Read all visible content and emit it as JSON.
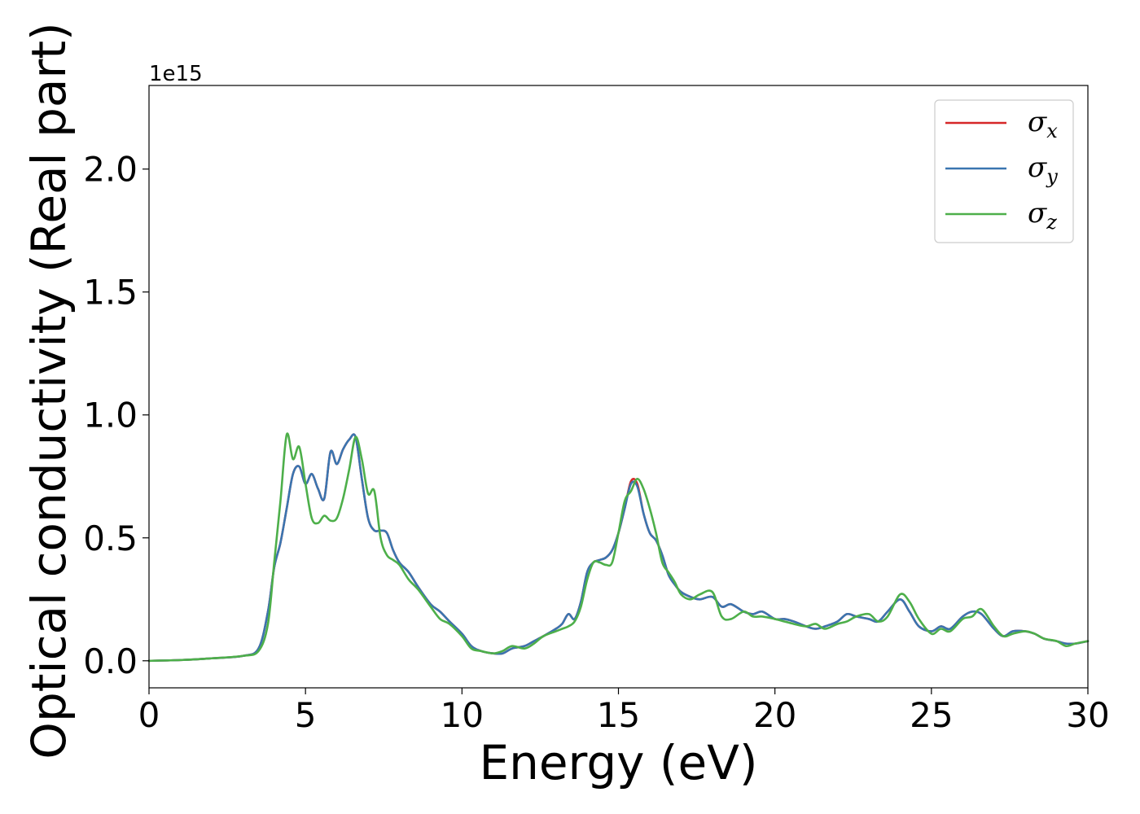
{
  "chart_data": {
    "type": "line",
    "title": "",
    "xlabel": "Energy (eV)",
    "ylabel": "Optical conductivity (Real part)",
    "y_scale_offset_text": "1e15",
    "xlim": [
      0,
      30
    ],
    "ylim": [
      -0.11,
      2.34
    ],
    "xticks": [
      0,
      5,
      10,
      15,
      20,
      25,
      30
    ],
    "xtick_labels": [
      "0",
      "5",
      "10",
      "15",
      "20",
      "25",
      "30"
    ],
    "yticks": [
      0.0,
      0.5,
      1.0,
      1.5,
      2.0
    ],
    "ytick_labels": [
      "0.0",
      "0.5",
      "1.0",
      "1.5",
      "2.0"
    ],
    "grid": false,
    "legend_position": "top-right",
    "series": [
      {
        "name": "σx",
        "symbol": "σ",
        "subscript": "x",
        "color": "#d62728",
        "x": [
          0,
          1,
          2,
          3,
          3.5,
          3.8,
          4.0,
          4.2,
          4.4,
          4.6,
          4.8,
          5.0,
          5.2,
          5.4,
          5.6,
          5.8,
          6.0,
          6.2,
          6.4,
          6.6,
          6.8,
          7.0,
          7.2,
          7.4,
          7.6,
          7.8,
          8.0,
          8.3,
          8.6,
          9.0,
          9.3,
          9.6,
          10.0,
          10.3,
          10.6,
          11.0,
          11.3,
          11.6,
          12.0,
          12.3,
          12.6,
          13.0,
          13.2,
          13.4,
          13.6,
          13.8,
          14.0,
          14.2,
          14.4,
          14.6,
          14.8,
          15.0,
          15.2,
          15.4,
          15.6,
          15.8,
          16.0,
          16.2,
          16.4,
          16.6,
          16.8,
          17.0,
          17.3,
          17.6,
          18.0,
          18.3,
          18.6,
          19.0,
          19.3,
          19.6,
          20.0,
          20.3,
          20.6,
          21.0,
          21.3,
          21.6,
          22.0,
          22.3,
          22.6,
          23.0,
          23.3,
          23.6,
          24.0,
          24.3,
          24.6,
          25.0,
          25.3,
          25.6,
          26.0,
          26.3,
          26.6,
          27.0,
          27.3,
          27.6,
          28.0,
          28.3,
          28.6,
          29.0,
          29.3,
          29.6,
          30.0
        ],
        "y": [
          0.0,
          0.003,
          0.01,
          0.02,
          0.05,
          0.2,
          0.38,
          0.48,
          0.62,
          0.76,
          0.79,
          0.72,
          0.76,
          0.7,
          0.66,
          0.85,
          0.8,
          0.86,
          0.9,
          0.91,
          0.74,
          0.58,
          0.53,
          0.53,
          0.52,
          0.45,
          0.4,
          0.36,
          0.3,
          0.23,
          0.2,
          0.16,
          0.11,
          0.06,
          0.04,
          0.03,
          0.03,
          0.05,
          0.06,
          0.08,
          0.1,
          0.13,
          0.15,
          0.19,
          0.17,
          0.24,
          0.36,
          0.4,
          0.41,
          0.42,
          0.45,
          0.52,
          0.62,
          0.73,
          0.72,
          0.6,
          0.52,
          0.49,
          0.43,
          0.35,
          0.31,
          0.28,
          0.26,
          0.25,
          0.26,
          0.22,
          0.23,
          0.2,
          0.19,
          0.2,
          0.17,
          0.17,
          0.16,
          0.14,
          0.13,
          0.14,
          0.16,
          0.19,
          0.18,
          0.17,
          0.16,
          0.2,
          0.25,
          0.2,
          0.14,
          0.12,
          0.14,
          0.13,
          0.18,
          0.2,
          0.19,
          0.13,
          0.1,
          0.12,
          0.12,
          0.11,
          0.09,
          0.08,
          0.07,
          0.07,
          0.08
        ]
      },
      {
        "name": "σy",
        "symbol": "σ",
        "subscript": "y",
        "color": "#3a75b0",
        "x": [
          0,
          1,
          2,
          3,
          3.5,
          3.8,
          4.0,
          4.2,
          4.4,
          4.6,
          4.8,
          5.0,
          5.2,
          5.4,
          5.6,
          5.8,
          6.0,
          6.2,
          6.4,
          6.6,
          6.8,
          7.0,
          7.2,
          7.4,
          7.6,
          7.8,
          8.0,
          8.3,
          8.6,
          9.0,
          9.3,
          9.6,
          10.0,
          10.3,
          10.6,
          11.0,
          11.3,
          11.6,
          12.0,
          12.3,
          12.6,
          13.0,
          13.2,
          13.4,
          13.6,
          13.8,
          14.0,
          14.2,
          14.4,
          14.6,
          14.8,
          15.0,
          15.2,
          15.4,
          15.6,
          15.8,
          16.0,
          16.2,
          16.4,
          16.6,
          16.8,
          17.0,
          17.3,
          17.6,
          18.0,
          18.3,
          18.6,
          19.0,
          19.3,
          19.6,
          20.0,
          20.3,
          20.6,
          21.0,
          21.3,
          21.6,
          22.0,
          22.3,
          22.6,
          23.0,
          23.3,
          23.6,
          24.0,
          24.3,
          24.6,
          25.0,
          25.3,
          25.6,
          26.0,
          26.3,
          26.6,
          27.0,
          27.3,
          27.6,
          28.0,
          28.3,
          28.6,
          29.0,
          29.3,
          29.6,
          30.0
        ],
        "y": [
          0.0,
          0.003,
          0.01,
          0.02,
          0.05,
          0.2,
          0.38,
          0.48,
          0.62,
          0.76,
          0.79,
          0.72,
          0.76,
          0.7,
          0.66,
          0.85,
          0.8,
          0.86,
          0.9,
          0.91,
          0.74,
          0.58,
          0.53,
          0.53,
          0.52,
          0.45,
          0.4,
          0.36,
          0.3,
          0.23,
          0.2,
          0.16,
          0.11,
          0.06,
          0.04,
          0.03,
          0.03,
          0.05,
          0.06,
          0.08,
          0.1,
          0.13,
          0.15,
          0.19,
          0.17,
          0.24,
          0.36,
          0.4,
          0.41,
          0.42,
          0.45,
          0.52,
          0.62,
          0.72,
          0.71,
          0.6,
          0.52,
          0.49,
          0.43,
          0.35,
          0.31,
          0.28,
          0.26,
          0.25,
          0.26,
          0.22,
          0.23,
          0.2,
          0.19,
          0.2,
          0.17,
          0.17,
          0.16,
          0.14,
          0.13,
          0.14,
          0.16,
          0.19,
          0.18,
          0.17,
          0.16,
          0.2,
          0.25,
          0.2,
          0.14,
          0.12,
          0.14,
          0.13,
          0.18,
          0.2,
          0.19,
          0.13,
          0.1,
          0.12,
          0.12,
          0.11,
          0.09,
          0.08,
          0.07,
          0.07,
          0.08
        ]
      },
      {
        "name": "σz",
        "symbol": "σ",
        "subscript": "z",
        "color": "#4daf4a",
        "x": [
          0,
          1,
          2,
          3,
          3.5,
          3.8,
          4.0,
          4.2,
          4.4,
          4.6,
          4.8,
          5.0,
          5.2,
          5.4,
          5.6,
          5.8,
          6.0,
          6.2,
          6.4,
          6.6,
          6.8,
          7.0,
          7.2,
          7.4,
          7.6,
          7.8,
          8.0,
          8.3,
          8.6,
          9.0,
          9.3,
          9.6,
          10.0,
          10.3,
          10.6,
          11.0,
          11.3,
          11.6,
          12.0,
          12.3,
          12.6,
          13.0,
          13.2,
          13.4,
          13.6,
          13.8,
          14.0,
          14.2,
          14.4,
          14.6,
          14.8,
          15.0,
          15.2,
          15.4,
          15.6,
          15.8,
          16.0,
          16.2,
          16.4,
          16.6,
          16.8,
          17.0,
          17.3,
          17.6,
          18.0,
          18.3,
          18.6,
          19.0,
          19.3,
          19.6,
          20.0,
          20.3,
          20.6,
          21.0,
          21.3,
          21.6,
          22.0,
          22.3,
          22.6,
          23.0,
          23.3,
          23.6,
          24.0,
          24.3,
          24.6,
          25.0,
          25.3,
          25.6,
          26.0,
          26.3,
          26.6,
          27.0,
          27.3,
          27.6,
          28.0,
          28.3,
          28.6,
          29.0,
          29.3,
          29.6,
          30.0
        ],
        "y": [
          0.0,
          0.003,
          0.01,
          0.02,
          0.04,
          0.15,
          0.4,
          0.65,
          0.92,
          0.82,
          0.87,
          0.72,
          0.58,
          0.56,
          0.59,
          0.57,
          0.58,
          0.66,
          0.78,
          0.91,
          0.82,
          0.68,
          0.69,
          0.5,
          0.43,
          0.41,
          0.39,
          0.33,
          0.29,
          0.22,
          0.17,
          0.15,
          0.1,
          0.05,
          0.04,
          0.03,
          0.04,
          0.06,
          0.05,
          0.07,
          0.1,
          0.12,
          0.13,
          0.14,
          0.16,
          0.22,
          0.33,
          0.4,
          0.4,
          0.39,
          0.4,
          0.52,
          0.65,
          0.69,
          0.74,
          0.7,
          0.62,
          0.52,
          0.4,
          0.36,
          0.32,
          0.27,
          0.25,
          0.27,
          0.28,
          0.18,
          0.17,
          0.2,
          0.18,
          0.18,
          0.17,
          0.16,
          0.15,
          0.14,
          0.15,
          0.13,
          0.15,
          0.16,
          0.18,
          0.19,
          0.16,
          0.18,
          0.27,
          0.24,
          0.17,
          0.11,
          0.13,
          0.12,
          0.17,
          0.18,
          0.21,
          0.14,
          0.1,
          0.11,
          0.12,
          0.11,
          0.09,
          0.08,
          0.06,
          0.07,
          0.08
        ]
      }
    ]
  }
}
